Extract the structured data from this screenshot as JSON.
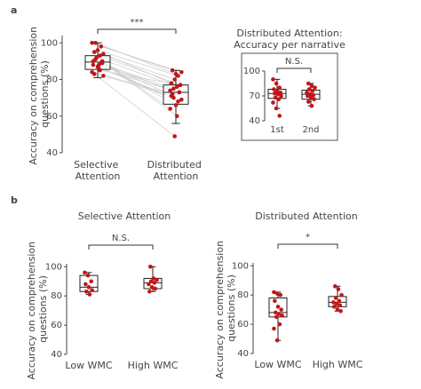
{
  "chart_data": [
    {
      "type": "box",
      "panel_label": "a",
      "ylabel": "Accuracy on comprehension questions (%)",
      "categories": [
        "Selective Attention",
        "Distributed Attention"
      ],
      "ylim": [
        40,
        104
      ],
      "yticks": [
        40,
        60,
        80,
        100
      ],
      "annotation": "***",
      "paired": true,
      "box_color": "#222222",
      "point_color": "#c0161a",
      "pair_color": "#cccccc",
      "boxes": [
        {
          "whisker_low": 81,
          "q1": 85.5,
          "median": 89.5,
          "q3": 93,
          "whisker_high": 100,
          "points": [
            100,
            92,
            98,
            88,
            96,
            90,
            95,
            86,
            94,
            91,
            93,
            84,
            92,
            89,
            90,
            87,
            89,
            83,
            88,
            82,
            100,
            85
          ]
        },
        {
          "whisker_low": 56,
          "q1": 66.5,
          "median": 73,
          "q3": 77,
          "whisker_high": 85,
          "points": [
            85,
            60,
            84,
            70,
            82,
            64,
            80,
            73,
            78,
            66,
            77,
            72,
            76,
            69,
            75,
            68,
            74,
            49,
            73,
            71,
            83,
            77
          ]
        }
      ]
    },
    {
      "type": "box",
      "title": "Distributed Attention:",
      "subtitle": "Accuracy per narrative",
      "categories": [
        "1st",
        "2nd"
      ],
      "ylim": [
        40,
        100
      ],
      "yticks": [
        40,
        70,
        100
      ],
      "annotation": "N.S.",
      "box_color": "#222222",
      "point_color": "#c0161a",
      "boxes": [
        {
          "whisker_low": 55,
          "q1": 67,
          "median": 73,
          "q3": 78,
          "whisker_high": 90,
          "points": [
            90,
            85,
            80,
            78,
            76,
            74,
            73,
            72,
            70,
            68,
            66,
            62,
            55,
            46
          ]
        },
        {
          "whisker_low": 58,
          "q1": 66,
          "median": 72,
          "q3": 77,
          "whisker_high": 85,
          "points": [
            85,
            82,
            80,
            78,
            76,
            74,
            72,
            71,
            70,
            68,
            66,
            63,
            58
          ]
        }
      ]
    },
    {
      "type": "box",
      "panel_label": "b",
      "title": "Selective Attention",
      "ylabel": "Accuracy on comprehension questions (%)",
      "categories": [
        "Low WMC",
        "High WMC"
      ],
      "ylim": [
        40,
        102
      ],
      "yticks": [
        40,
        60,
        80,
        100
      ],
      "annotation": "N.S.",
      "box_color": "#222222",
      "point_color": "#c0161a",
      "boxes": [
        {
          "whisker_low": 81,
          "q1": 83,
          "median": 86,
          "q3": 94,
          "whisker_high": 96,
          "points": [
            96,
            94,
            90,
            88,
            86,
            84,
            83,
            81
          ]
        },
        {
          "whisker_low": 83,
          "q1": 85,
          "median": 89,
          "q3": 92,
          "whisker_high": 100,
          "points": [
            100,
            92,
            91,
            90,
            89,
            88,
            86,
            85,
            83
          ]
        }
      ]
    },
    {
      "type": "box",
      "title": "Distributed Attention",
      "ylabel": "Accuracy on comprehension questions (%)",
      "categories": [
        "Low WMC",
        "High WMC"
      ],
      "ylim": [
        40,
        102
      ],
      "yticks": [
        40,
        60,
        80,
        100
      ],
      "annotation": "*",
      "box_color": "#222222",
      "point_color": "#c0161a",
      "boxes": [
        {
          "whisker_low": 49,
          "q1": 65,
          "median": 68,
          "q3": 78,
          "whisker_high": 82,
          "points": [
            82,
            81,
            80,
            76,
            72,
            70,
            68,
            67,
            66,
            65,
            60,
            57,
            49
          ]
        },
        {
          "whisker_low": 69,
          "q1": 72,
          "median": 75,
          "q3": 79,
          "whisker_high": 86,
          "points": [
            86,
            84,
            80,
            78,
            76,
            75,
            74,
            73,
            72,
            70,
            69
          ]
        }
      ]
    }
  ]
}
